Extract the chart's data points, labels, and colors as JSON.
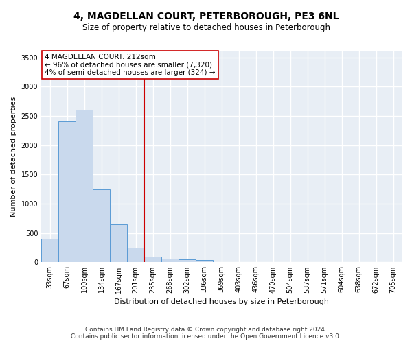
{
  "title": "4, MAGDELLAN COURT, PETERBOROUGH, PE3 6NL",
  "subtitle": "Size of property relative to detached houses in Peterborough",
  "xlabel": "Distribution of detached houses by size in Peterborough",
  "ylabel": "Number of detached properties",
  "categories": [
    "33sqm",
    "67sqm",
    "100sqm",
    "134sqm",
    "167sqm",
    "201sqm",
    "235sqm",
    "268sqm",
    "302sqm",
    "336sqm",
    "369sqm",
    "403sqm",
    "436sqm",
    "470sqm",
    "504sqm",
    "537sqm",
    "571sqm",
    "604sqm",
    "638sqm",
    "672sqm",
    "705sqm"
  ],
  "values": [
    400,
    2400,
    2600,
    1250,
    650,
    250,
    100,
    60,
    50,
    40,
    10,
    5,
    3,
    2,
    1,
    1,
    0,
    0,
    0,
    0,
    0
  ],
  "bar_color": "#c9d9ed",
  "bar_edge_color": "#5b9bd5",
  "reference_line_x": 5.5,
  "reference_line_color": "#cc0000",
  "annotation_text": "4 MAGDELLAN COURT: 212sqm\n← 96% of detached houses are smaller (7,320)\n4% of semi-detached houses are larger (324) →",
  "annotation_box_color": "#ffffff",
  "annotation_box_edge": "#cc0000",
  "ylim": [
    0,
    3600
  ],
  "yticks": [
    0,
    500,
    1000,
    1500,
    2000,
    2500,
    3000,
    3500
  ],
  "footer_line1": "Contains HM Land Registry data © Crown copyright and database right 2024.",
  "footer_line2": "Contains public sector information licensed under the Open Government Licence v3.0.",
  "bg_color": "#ffffff",
  "plot_bg_color": "#e8eef5",
  "grid_color": "#ffffff",
  "title_fontsize": 10,
  "subtitle_fontsize": 8.5,
  "axis_label_fontsize": 8,
  "tick_fontsize": 7,
  "annotation_fontsize": 7.5,
  "footer_fontsize": 6.5
}
